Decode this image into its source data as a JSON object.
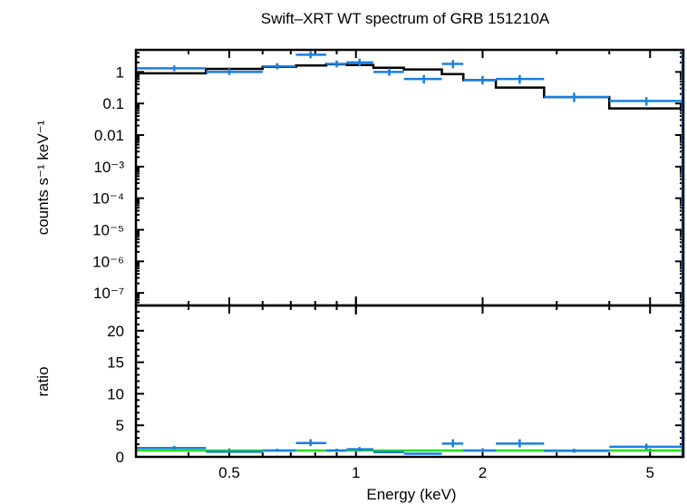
{
  "chart_data": {
    "type": "scatter",
    "title": "Swift–XRT WT spectrum of GRB 151210A",
    "xlabel": "Energy (keV)",
    "x_scale": "log",
    "xlim": [
      0.3,
      6.0
    ],
    "x_ticks": [
      "0.5",
      "1",
      "2",
      "5"
    ],
    "x_tick_values": [
      0.5,
      1,
      2,
      5
    ],
    "colors": {
      "data": "#1a7fe0",
      "model": "#000000",
      "ratio_unity": "#22dd22"
    },
    "panels": [
      {
        "name": "spectrum",
        "ylabel": "counts s⁻¹ keV⁻¹",
        "y_scale": "log",
        "ylim": [
          4e-08,
          5
        ],
        "y_ticks": [
          "1",
          "0.1",
          "0.01",
          "10⁻³",
          "10⁻⁴",
          "10⁻⁵",
          "10⁻⁶",
          "10⁻⁷"
        ],
        "y_tick_values": [
          1,
          0.1,
          0.01,
          0.001,
          0.0001,
          1e-05,
          1e-06,
          1e-07
        ],
        "series": [
          {
            "kind": "data",
            "points": [
              {
                "x": 0.37,
                "xlo": 0.3,
                "xhi": 0.44,
                "y": 1.3,
                "ylo": 1.05,
                "yhi": 1.6
              },
              {
                "x": 0.5,
                "xlo": 0.44,
                "xhi": 0.6,
                "y": 1.0,
                "ylo": 0.8,
                "yhi": 1.3
              },
              {
                "x": 0.65,
                "xlo": 0.6,
                "xhi": 0.72,
                "y": 1.5,
                "ylo": 1.2,
                "yhi": 1.9
              },
              {
                "x": 0.78,
                "xlo": 0.72,
                "xhi": 0.85,
                "y": 3.5,
                "ylo": 2.7,
                "yhi": 4.5
              },
              {
                "x": 0.9,
                "xlo": 0.85,
                "xhi": 0.95,
                "y": 1.8,
                "ylo": 1.4,
                "yhi": 2.3
              },
              {
                "x": 1.02,
                "xlo": 0.95,
                "xhi": 1.1,
                "y": 2.0,
                "ylo": 1.5,
                "yhi": 2.6
              },
              {
                "x": 1.2,
                "xlo": 1.1,
                "xhi": 1.3,
                "y": 1.0,
                "ylo": 0.75,
                "yhi": 1.3
              },
              {
                "x": 1.45,
                "xlo": 1.3,
                "xhi": 1.6,
                "y": 0.6,
                "ylo": 0.43,
                "yhi": 0.8
              },
              {
                "x": 1.7,
                "xlo": 1.6,
                "xhi": 1.8,
                "y": 1.8,
                "ylo": 1.3,
                "yhi": 2.4
              },
              {
                "x": 2.0,
                "xlo": 1.8,
                "xhi": 2.15,
                "y": 0.55,
                "ylo": 0.4,
                "yhi": 0.75
              },
              {
                "x": 2.45,
                "xlo": 2.15,
                "xhi": 2.8,
                "y": 0.6,
                "ylo": 0.42,
                "yhi": 0.8
              },
              {
                "x": 3.3,
                "xlo": 2.8,
                "xhi": 4.0,
                "y": 0.16,
                "ylo": 0.11,
                "yhi": 0.22
              },
              {
                "x": 4.9,
                "xlo": 4.0,
                "xhi": 6.0,
                "y": 0.12,
                "ylo": 0.085,
                "yhi": 0.16
              }
            ]
          },
          {
            "kind": "model",
            "steps": [
              {
                "xlo": 0.3,
                "xhi": 0.44,
                "y": 0.9
              },
              {
                "xlo": 0.44,
                "xhi": 0.6,
                "y": 1.25
              },
              {
                "xlo": 0.6,
                "xhi": 0.72,
                "y": 1.45
              },
              {
                "xlo": 0.72,
                "xhi": 0.85,
                "y": 1.6
              },
              {
                "xlo": 0.85,
                "xhi": 0.95,
                "y": 1.75
              },
              {
                "xlo": 0.95,
                "xhi": 1.1,
                "y": 1.65
              },
              {
                "xlo": 1.1,
                "xhi": 1.3,
                "y": 1.35
              },
              {
                "xlo": 1.3,
                "xhi": 1.6,
                "y": 1.2
              },
              {
                "xlo": 1.6,
                "xhi": 1.8,
                "y": 0.85
              },
              {
                "xlo": 1.8,
                "xhi": 2.15,
                "y": 0.55
              },
              {
                "xlo": 2.15,
                "xhi": 2.5,
                "y": 0.32
              },
              {
                "xlo": 2.5,
                "xhi": 2.8,
                "y": 0.32
              },
              {
                "xlo": 2.8,
                "xhi": 4.0,
                "y": 0.16
              },
              {
                "xlo": 4.0,
                "xhi": 6.0,
                "y": 0.07
              }
            ]
          }
        ]
      },
      {
        "name": "ratio",
        "ylabel": "ratio",
        "y_scale": "linear",
        "ylim": [
          0,
          24
        ],
        "y_ticks": [
          "0",
          "5",
          "10",
          "15",
          "20"
        ],
        "y_tick_values": [
          0,
          5,
          10,
          15,
          20
        ],
        "unity_line": 1,
        "series": [
          {
            "kind": "data",
            "points": [
              {
                "x": 0.37,
                "xlo": 0.3,
                "xhi": 0.44,
                "y": 1.4,
                "ylo": 1.15,
                "yhi": 1.75
              },
              {
                "x": 0.5,
                "xlo": 0.44,
                "xhi": 0.6,
                "y": 0.8,
                "ylo": 0.65,
                "yhi": 1.0
              },
              {
                "x": 0.65,
                "xlo": 0.6,
                "xhi": 0.72,
                "y": 1.0,
                "ylo": 0.8,
                "yhi": 1.3
              },
              {
                "x": 0.78,
                "xlo": 0.72,
                "xhi": 0.85,
                "y": 2.2,
                "ylo": 1.7,
                "yhi": 2.8
              },
              {
                "x": 0.9,
                "xlo": 0.85,
                "xhi": 0.95,
                "y": 1.0,
                "ylo": 0.8,
                "yhi": 1.3
              },
              {
                "x": 1.02,
                "xlo": 0.95,
                "xhi": 1.1,
                "y": 1.2,
                "ylo": 0.9,
                "yhi": 1.55
              },
              {
                "x": 1.2,
                "xlo": 1.1,
                "xhi": 1.3,
                "y": 0.75,
                "ylo": 0.55,
                "yhi": 0.95
              },
              {
                "x": 1.45,
                "xlo": 1.3,
                "xhi": 1.6,
                "y": 0.5,
                "ylo": 0.35,
                "yhi": 0.67
              },
              {
                "x": 1.7,
                "xlo": 1.6,
                "xhi": 1.8,
                "y": 2.1,
                "ylo": 1.5,
                "yhi": 2.8
              },
              {
                "x": 2.0,
                "xlo": 1.8,
                "xhi": 2.15,
                "y": 1.0,
                "ylo": 0.73,
                "yhi": 1.36
              },
              {
                "x": 2.45,
                "xlo": 2.15,
                "xhi": 2.8,
                "y": 2.1,
                "ylo": 1.5,
                "yhi": 2.8
              },
              {
                "x": 3.3,
                "xlo": 2.8,
                "xhi": 4.0,
                "y": 0.95,
                "ylo": 0.65,
                "yhi": 1.3
              },
              {
                "x": 4.9,
                "xlo": 4.0,
                "xhi": 6.0,
                "y": 1.6,
                "ylo": 1.15,
                "yhi": 2.1
              }
            ]
          }
        ]
      }
    ]
  }
}
